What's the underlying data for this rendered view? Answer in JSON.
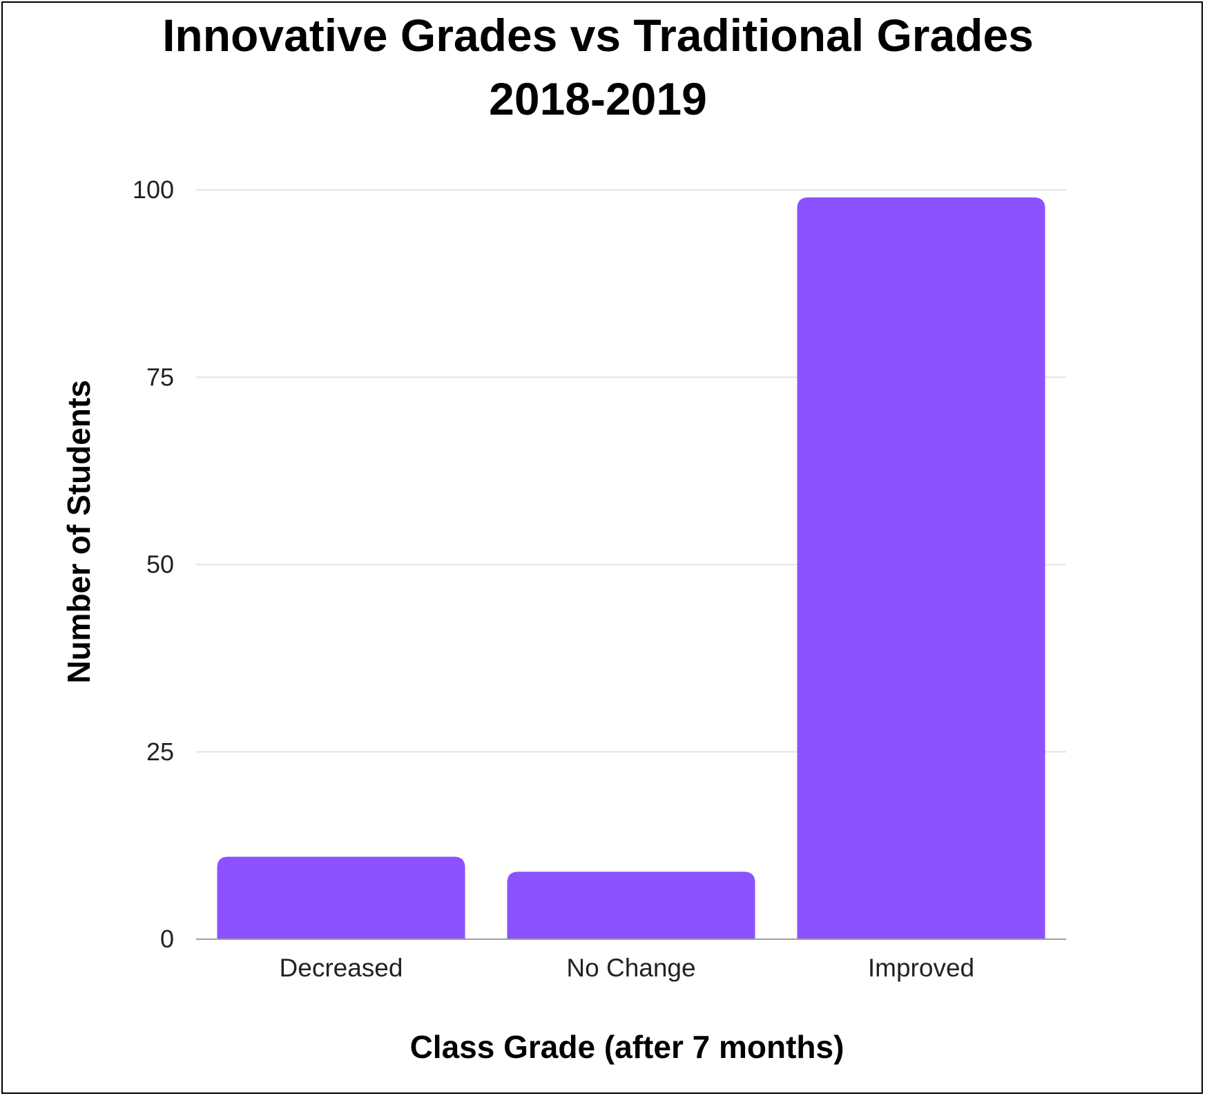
{
  "chart_data": {
    "type": "bar",
    "title_lines": [
      "Innovative Grades vs Traditional Grades",
      "2018-2019"
    ],
    "xlabel": "Class Grade (after 7 months)",
    "ylabel": "Number of Students",
    "categories": [
      "Decreased",
      "No Change",
      "Improved"
    ],
    "values": [
      11,
      9,
      99
    ],
    "ylim": [
      0,
      100
    ],
    "yticks": [
      "0",
      "25",
      "50",
      "75",
      "100"
    ],
    "grid": true,
    "legend": "none",
    "colors": {
      "bar": "#8c52ff",
      "grid": "#e3e3e3",
      "axis": "#9e9e9e"
    }
  }
}
